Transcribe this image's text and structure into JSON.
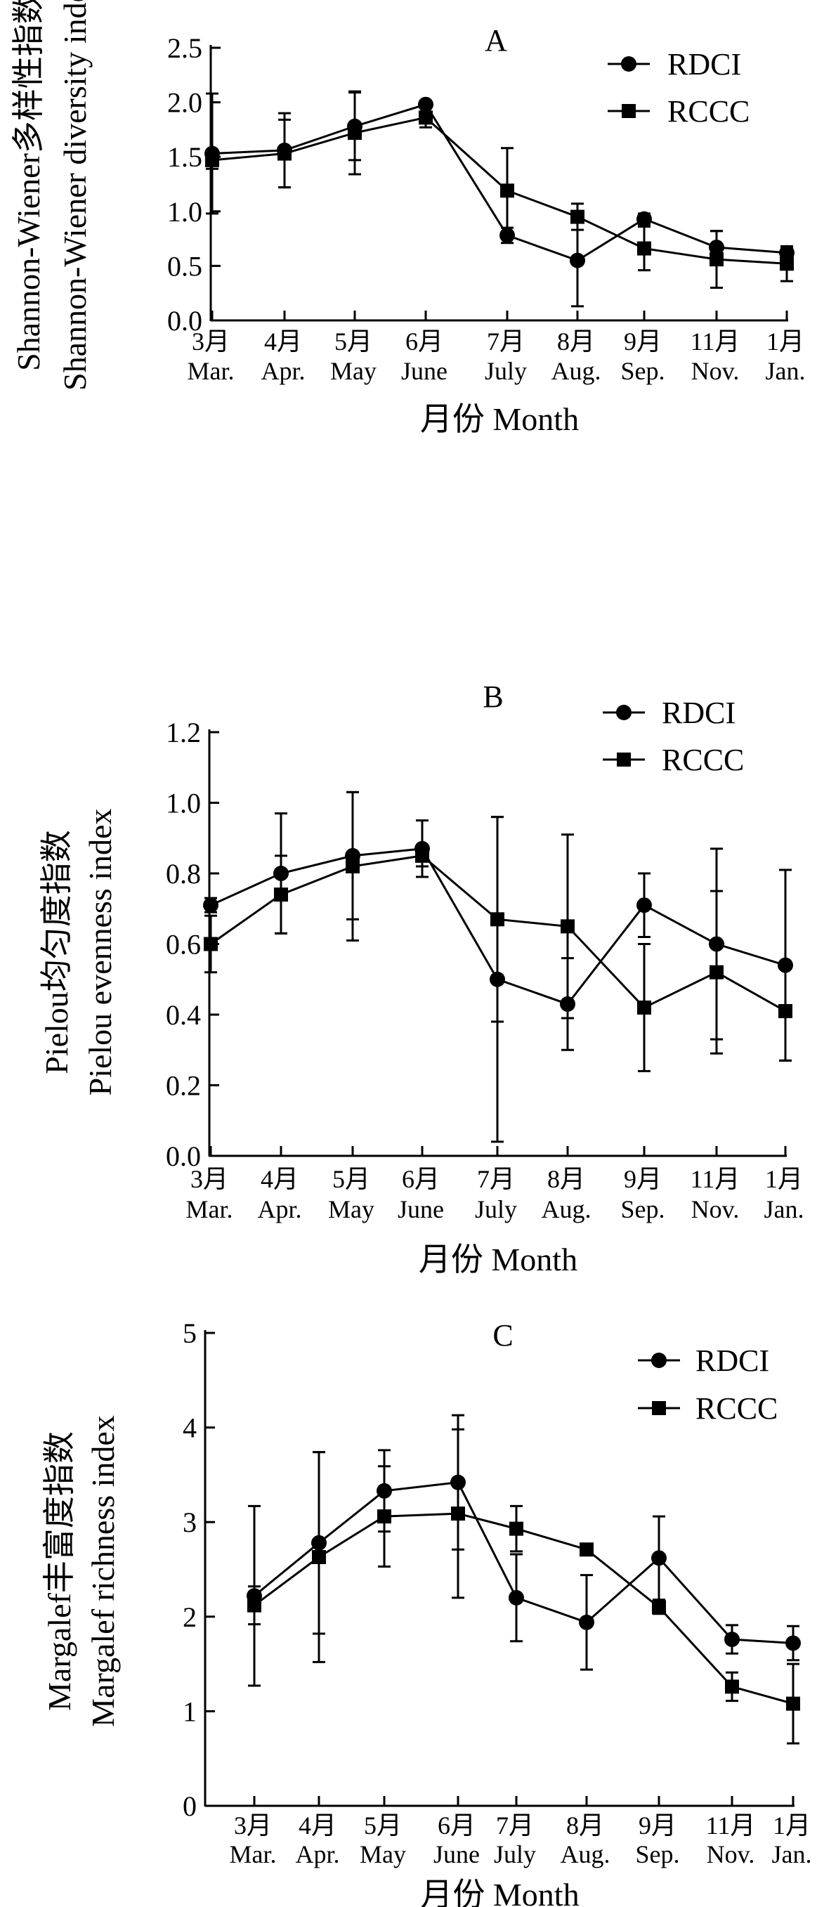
{
  "chart_data": [
    {
      "type": "line",
      "panel_label": "A",
      "ylabel_cn": "Shannon-Wiener多样性指数",
      "ylabel_en": "Shannon-Wiener diversity index",
      "xlabel": "月份 Month",
      "ylim": [
        0,
        2.5
      ],
      "yticks": [
        "0.0",
        "0.5",
        "1.0",
        "1.5",
        "2.0",
        "2.5"
      ],
      "months_cn": [
        "3月",
        "4月",
        "5月",
        "6月",
        "7月",
        "8月",
        "9月",
        "11月",
        "1月"
      ],
      "months_en": [
        "Mar.",
        "Apr.",
        "May",
        "June",
        "July",
        "Aug.",
        "Sep.",
        "Nov.",
        "Jan."
      ],
      "series": [
        {
          "name": "RDCI",
          "marker": "circle",
          "values": [
            1.53,
            1.56,
            1.78,
            1.98,
            0.78,
            0.55,
            0.93,
            0.67,
            0.62
          ],
          "errors": [
            0.55,
            0.34,
            0.31,
            0.02,
            0.07,
            0.42,
            0.05,
            0.15,
            0.05
          ]
        },
        {
          "name": "RCCC",
          "marker": "square",
          "values": [
            1.47,
            1.53,
            1.72,
            1.86,
            1.19,
            0.95,
            0.66,
            0.56,
            0.52
          ],
          "errors": [
            0.08,
            0.31,
            0.38,
            0.09,
            0.39,
            0.12,
            0.2,
            0.26,
            0.16
          ]
        }
      ],
      "legend": "top-right"
    },
    {
      "type": "line",
      "panel_label": "B",
      "ylabel_cn": "Pielou均匀度指数",
      "ylabel_en": "Pielou evenness index",
      "xlabel": "月份 Month",
      "ylim": [
        0,
        1.2
      ],
      "yticks": [
        "0.0",
        "0.2",
        "0.4",
        "0.6",
        "0.8",
        "1.0",
        "1.2"
      ],
      "months_cn": [
        "3月",
        "4月",
        "5月",
        "6月",
        "7月",
        "8月",
        "9月",
        "11月",
        "1月"
      ],
      "months_en": [
        "Mar.",
        "Apr.",
        "May",
        "June",
        "July",
        "Aug.",
        "Sep.",
        "Nov.",
        "Jan."
      ],
      "series": [
        {
          "name": "RDCI",
          "marker": "circle",
          "values": [
            0.71,
            0.8,
            0.85,
            0.87,
            0.5,
            0.43,
            0.71,
            0.6,
            0.54
          ],
          "errors": [
            0.02,
            0.17,
            0.18,
            0.08,
            0.46,
            0.13,
            0.09,
            0.27,
            0.27
          ]
        },
        {
          "name": "RCCC",
          "marker": "square",
          "values": [
            0.6,
            0.74,
            0.82,
            0.85,
            0.67,
            0.65,
            0.42,
            0.52,
            0.41
          ],
          "errors": [
            0.08,
            0.11,
            0.21,
            0.03,
            0.29,
            0.26,
            0.18,
            0.23,
            0.14
          ]
        }
      ],
      "legend": "top-right"
    },
    {
      "type": "line",
      "panel_label": "C",
      "ylabel_cn": "Margalef丰富度指数",
      "ylabel_en": "Margalef richness index",
      "xlabel": "月份 Month",
      "ylim": [
        0,
        5
      ],
      "yticks": [
        "0",
        "1",
        "2",
        "3",
        "4",
        "5"
      ],
      "months_cn": [
        "3月",
        "4月",
        "5月",
        "6月",
        "7月",
        "8月",
        "9月",
        "11月",
        "1月"
      ],
      "months_en": [
        "Mar.",
        "Apr.",
        "May",
        "June",
        "July",
        "Aug.",
        "Sep.",
        "Nov.",
        "Jan."
      ],
      "series": [
        {
          "name": "RDCI",
          "marker": "circle",
          "values": [
            2.22,
            2.78,
            3.33,
            3.42,
            2.2,
            1.94,
            2.62,
            1.76,
            1.72
          ],
          "errors": [
            0.95,
            0.96,
            0.43,
            0.71,
            0.46,
            0.5,
            0.44,
            0.15,
            0.18
          ]
        },
        {
          "name": "RCCC",
          "marker": "square",
          "values": [
            2.12,
            2.63,
            3.06,
            3.09,
            2.93,
            2.71,
            2.1,
            1.26,
            1.08
          ],
          "errors": [
            0.2,
            1.11,
            0.53,
            0.89,
            0.24,
            0.03,
            0.07,
            0.15,
            0.42
          ]
        }
      ],
      "legend": "top-right"
    }
  ]
}
